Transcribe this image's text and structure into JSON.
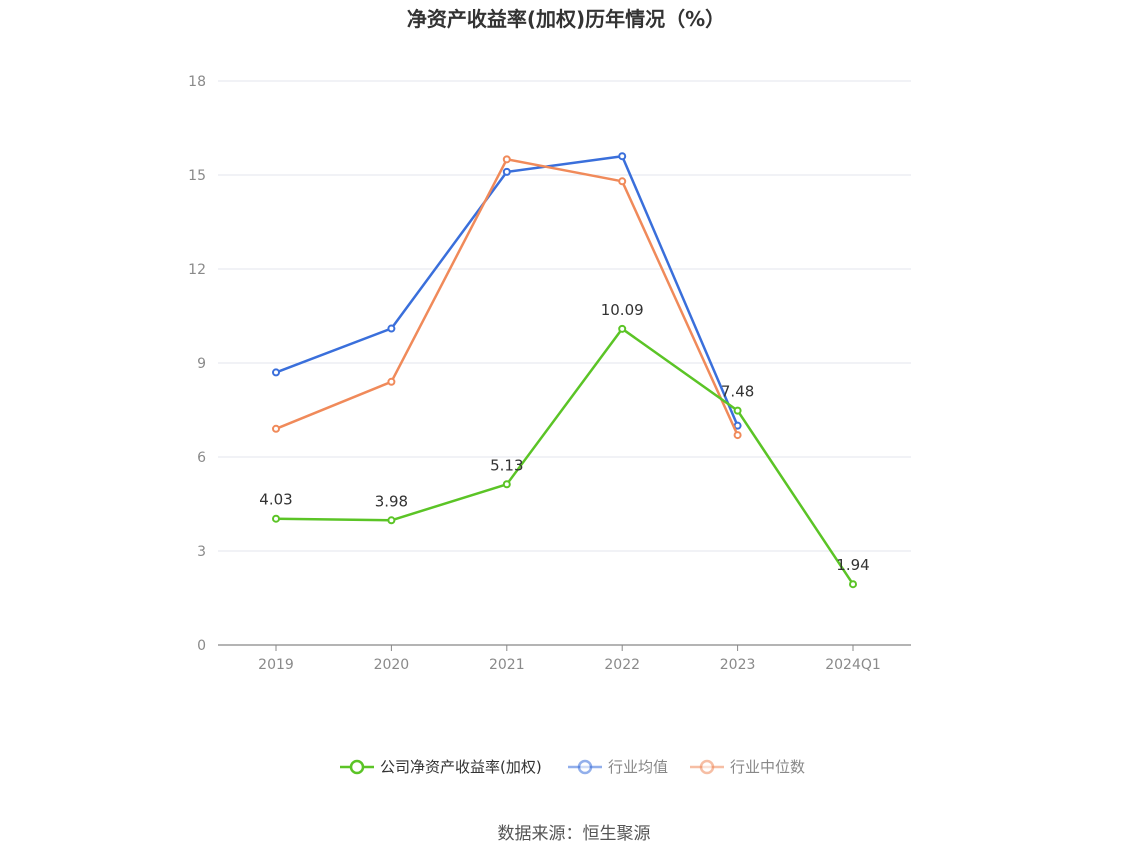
{
  "chart_data": {
    "type": "line",
    "title": "净资产收益率(加权)历年情况（%）",
    "categories": [
      "2019",
      "2020",
      "2021",
      "2022",
      "2023",
      "2024Q1"
    ],
    "ylim": [
      0,
      18
    ],
    "yticks": [
      "0",
      "3",
      "6",
      "9",
      "12",
      "15",
      "18"
    ],
    "grid": true,
    "legend_position": "bottom-center",
    "series": [
      {
        "name": "公司净资产收益率(加权)",
        "color": "#5bc426",
        "values": [
          4.03,
          3.98,
          5.13,
          10.09,
          7.48,
          1.94
        ],
        "labels": [
          "4.03",
          "3.98",
          "5.13",
          "10.09",
          "7.48",
          "1.94"
        ]
      },
      {
        "name": "行业均值",
        "color": "#3a6fdb",
        "values": [
          8.7,
          10.1,
          15.1,
          15.6,
          7.0,
          null
        ]
      },
      {
        "name": "行业中位数",
        "color": "#f08a5a",
        "values": [
          6.9,
          8.4,
          15.5,
          14.8,
          6.7,
          null
        ]
      }
    ],
    "source": "数据来源：恒生聚源"
  }
}
